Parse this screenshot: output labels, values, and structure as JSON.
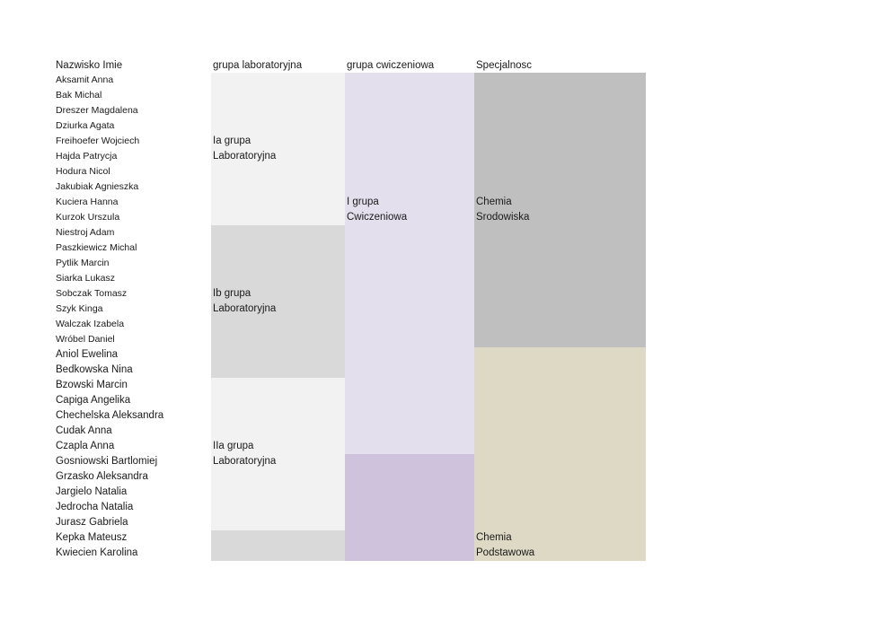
{
  "headers": {
    "name": "Nazwisko Imie",
    "lab": "grupa laboratoryjna",
    "exercise": "grupa cwiczeniowa",
    "specialty": "Specjalnosc"
  },
  "students": [
    "Aksamit Anna",
    "Bak Michal",
    "Dreszer Magdalena",
    "Dziurka Agata",
    "Freihoefer Wojciech",
    "Hajda Patrycja",
    "Hodura Nicol",
    "Jakubiak Agnieszka",
    "Kuciera Hanna",
    "Kurzok Urszula",
    "Niestroj Adam",
    "Paszkiewicz Michal",
    "Pytlik Marcin",
    "Siarka Lukasz",
    "Sobczak Tomasz",
    "Szyk Kinga",
    "Walczak Izabela",
    "Wróbel Daniel",
    "Aniol Ewelina",
    "Bedkowska Nina",
    "Bzowski Marcin",
    "Capiga Angelika",
    "Chechelska Aleksandra",
    "Cudak Anna",
    "Czapla Anna",
    "Gosniowski Bartlomiej",
    "Grzasko Aleksandra",
    "Jargielo Natalia",
    "Jedrocha Natalia",
    "Jurasz Gabriela",
    "Kepka Mateusz",
    "Kwiecien Karolina"
  ],
  "lab_groups": [
    {
      "line1": "Ia grupa",
      "line2": "Laboratoryjna",
      "color": "#f2f2f2"
    },
    {
      "line1": "Ib grupa",
      "line2": "Laboratoryjna",
      "color": "#d9d9d9"
    },
    {
      "line1": "IIa grupa",
      "line2": "Laboratoryjna",
      "color": "#f2f2f2"
    },
    {
      "line1": "",
      "line2": "",
      "color": "#d9d9d9"
    }
  ],
  "exercise_groups": [
    {
      "line1": "I grupa",
      "line2": "Cwiczeniowa",
      "color": "#e4dfed"
    },
    {
      "line1": "",
      "line2": "",
      "color": "#cfc2dc"
    }
  ],
  "specialties": [
    {
      "line1": "Chemia",
      "line2": "Srodowiska",
      "color": "#bfbfbf"
    },
    {
      "line1": "Chemia",
      "line2": "Podstawowa",
      "color": "#ddd9c4"
    }
  ]
}
